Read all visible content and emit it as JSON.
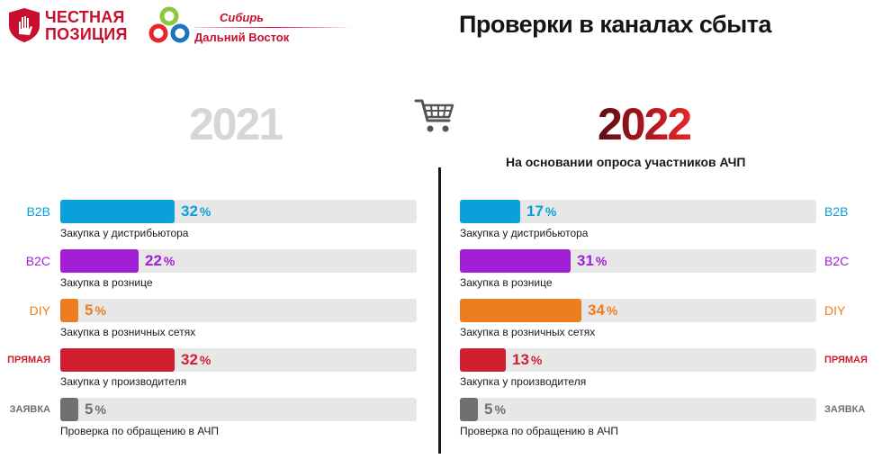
{
  "logos": {
    "primary_line1": "ЧЕСТНАЯ",
    "primary_line2": "ПОЗИЦИЯ",
    "secondary_line1": "Сибирь",
    "secondary_line2": "Дальний Восток"
  },
  "title": "Проверки в каналах сбыта",
  "icons": {
    "cart": "shopping-cart-icon",
    "shield": "hand-shield-icon",
    "brand": "rings-logo-icon"
  },
  "colors": {
    "b2b": "#0aa0dc",
    "b2c": "#a21fd6",
    "diy": "#ed7d1f",
    "direct": "#d0202f",
    "request": "#707070",
    "track": "#e7e7e7"
  },
  "chart_data": [
    {
      "type": "bar",
      "orientation": "horizontal",
      "title": "2021",
      "subtitle": "",
      "categories": [
        "B2B",
        "B2C",
        "DIY",
        "ПРЯМАЯ",
        "ЗАЯВКА"
      ],
      "descriptions": [
        "Закупка у дистрибьютора",
        "Закупка в рознице",
        "Закупка в розничных сетях",
        "Закупка у производителя",
        "Проверка по обращению в АЧП"
      ],
      "values": [
        32,
        22,
        5,
        32,
        5
      ],
      "unit": "%",
      "xlim": [
        0,
        100
      ]
    },
    {
      "type": "bar",
      "orientation": "horizontal",
      "title": "2022",
      "subtitle": "На основании опроса участников АЧП",
      "categories": [
        "B2B",
        "B2C",
        "DIY",
        "ПРЯМАЯ",
        "ЗАЯВКА"
      ],
      "descriptions": [
        "Закупка у дистрибьютора",
        "Закупка в рознице",
        "Закупка в розничных сетях",
        "Закупка у производителя",
        "Проверка по обращению в АЧП"
      ],
      "values": [
        17,
        31,
        34,
        13,
        5
      ],
      "unit": "%",
      "xlim": [
        0,
        100
      ]
    }
  ]
}
